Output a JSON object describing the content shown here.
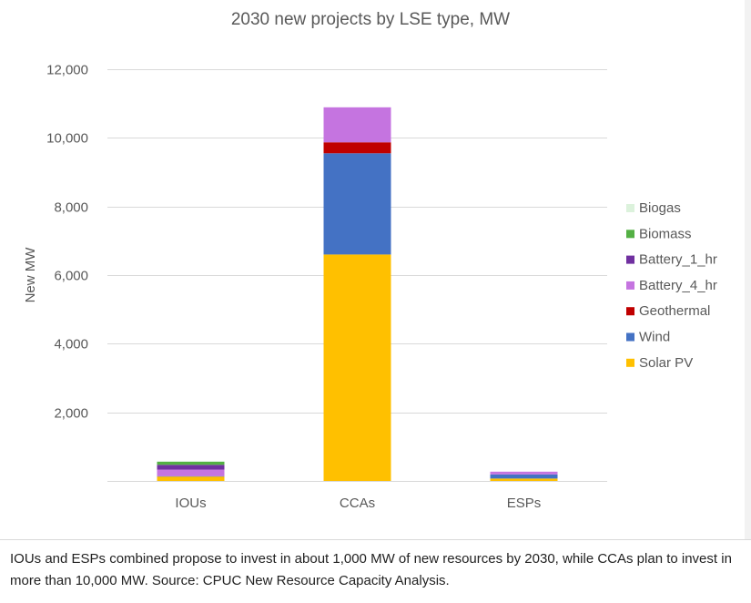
{
  "chart_data": {
    "type": "bar",
    "stacked": true,
    "title": "2030 new projects by LSE type, MW",
    "xlabel": "",
    "ylabel": "New MW",
    "ylim": [
      0,
      12000
    ],
    "yticks": [
      2000,
      4000,
      6000,
      8000,
      10000,
      12000
    ],
    "ytick_labels": [
      "2,000",
      "4,000",
      "6,000",
      "8,000",
      "10,000",
      "12,000"
    ],
    "grid": true,
    "legend_position": "right",
    "categories": [
      "IOUs",
      "CCAs",
      "ESPs"
    ],
    "series": [
      {
        "name": "Solar PV",
        "color": "#ffc000",
        "values": [
          130,
          6600,
          70
        ]
      },
      {
        "name": "Wind",
        "color": "#4472c4",
        "values": [
          10,
          2950,
          120
        ]
      },
      {
        "name": "Geothermal",
        "color": "#c00000",
        "values": [
          0,
          320,
          0
        ]
      },
      {
        "name": "Battery_4_hr",
        "color": "#c574e0",
        "values": [
          190,
          1020,
          80
        ]
      },
      {
        "name": "Battery_1_hr",
        "color": "#7030a0",
        "values": [
          140,
          0,
          0
        ]
      },
      {
        "name": "Biomass",
        "color": "#54b044",
        "values": [
          90,
          0,
          0
        ]
      },
      {
        "name": "Biogas",
        "color": "#dcf2dc",
        "values": [
          20,
          0,
          0
        ]
      }
    ]
  },
  "caption": "IOUs and ESPs combined propose to invest in about 1,000 MW of new resources by 2030, while CCAs plan to invest in more than 10,000 MW. Source: CPUC New Resource Capacity Analysis."
}
